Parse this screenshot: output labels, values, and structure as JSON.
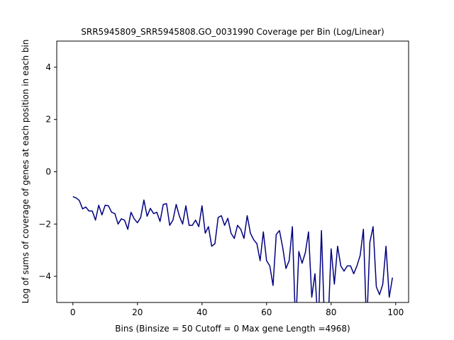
{
  "chart_data": {
    "type": "line",
    "title": "SRR5945809_SRR5945808.GO_0031990 Coverage per Bin (Log/Linear)",
    "xlabel": "Bins  (Binsize = 50 Cutoff = 0 Max gene Length =4968)",
    "ylabel": "Log of sums of coverage of genes at each position in each bin",
    "xlim": [
      -5,
      104
    ],
    "ylim": [
      -5,
      5
    ],
    "xticks": [
      0,
      20,
      40,
      60,
      80,
      100
    ],
    "yticks": [
      -4,
      -2,
      0,
      2,
      4
    ],
    "grid": false,
    "line_color": "#000080",
    "series": [
      {
        "x": [
          0,
          1,
          2,
          3,
          4,
          5,
          6,
          7,
          8,
          9,
          10,
          11,
          12,
          13,
          14,
          15,
          16,
          17,
          18,
          19,
          20,
          21,
          22,
          23,
          24,
          25,
          26,
          27,
          28,
          29,
          30,
          31,
          32,
          33,
          34,
          35,
          36,
          37,
          38,
          39,
          40,
          41,
          42,
          43,
          44,
          45,
          46,
          47,
          48,
          49,
          50,
          51,
          52,
          53,
          54,
          55,
          56,
          57,
          58,
          59,
          60,
          61,
          62,
          63,
          64,
          65,
          66,
          67,
          68,
          69,
          70,
          71,
          72,
          73,
          74,
          75,
          76,
          77,
          78,
          79,
          80,
          81,
          82,
          83,
          84,
          85,
          86,
          87,
          88,
          89,
          90,
          91,
          92,
          93,
          94,
          95,
          96,
          97,
          98,
          99
        ],
        "y": [
          -0.95,
          -1.0,
          -1.1,
          -1.42,
          -1.35,
          -1.5,
          -1.5,
          -1.85,
          -1.28,
          -1.65,
          -1.28,
          -1.3,
          -1.55,
          -1.6,
          -2.0,
          -1.8,
          -1.85,
          -2.2,
          -1.55,
          -1.8,
          -1.95,
          -1.75,
          -1.08,
          -1.7,
          -1.4,
          -1.6,
          -1.55,
          -1.9,
          -1.25,
          -1.22,
          -2.05,
          -1.85,
          -1.25,
          -1.7,
          -2.0,
          -1.3,
          -2.05,
          -2.05,
          -1.85,
          -2.1,
          -1.3,
          -2.35,
          -2.1,
          -2.85,
          -2.75,
          -1.75,
          -1.68,
          -2.05,
          -1.78,
          -2.35,
          -2.55,
          -2.05,
          -2.2,
          -2.55,
          -1.68,
          -2.35,
          -2.6,
          -2.75,
          -3.4,
          -2.3,
          -3.4,
          -3.6,
          -4.35,
          -2.4,
          -2.25,
          -2.9,
          -3.7,
          -3.4,
          -2.1,
          -6,
          -3.05,
          -3.5,
          -3.1,
          -2.3,
          -4.8,
          -3.9,
          -6,
          -2.25,
          -6,
          -6,
          -2.95,
          -4.3,
          -2.85,
          -3.6,
          -3.8,
          -3.6,
          -3.6,
          -3.9,
          -3.6,
          -3.2,
          -2.2,
          -6,
          -2.7,
          -2.1,
          -4.4,
          -4.7,
          -4.3,
          -2.85,
          -4.8,
          -4.05
        ]
      }
    ]
  }
}
